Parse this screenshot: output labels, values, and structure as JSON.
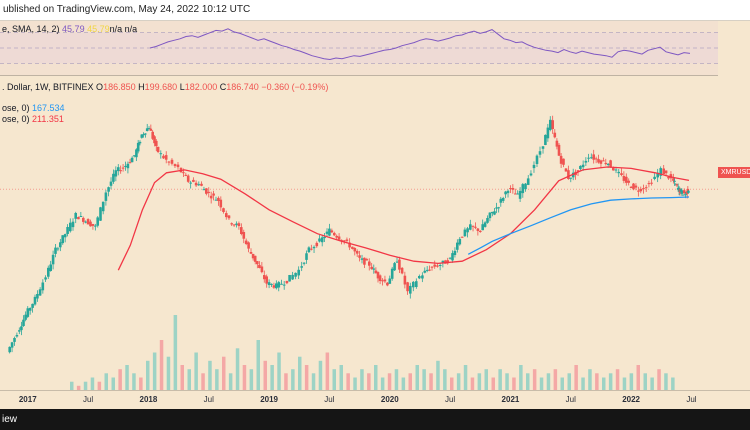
{
  "header": {
    "published": "ublished on TradingView.com, May 24, 2022 10:12 UTC"
  },
  "rsi": {
    "legend_main": "e, SMA, 14, 2)",
    "legend_value": "45.79",
    "legend_sma": "45.79",
    "legend_na": "n/a n/a",
    "line_color": "#7e57c2",
    "sma_color": "#f0d545",
    "points": [
      50,
      52,
      55,
      58,
      60,
      62,
      65,
      66,
      64,
      67,
      70,
      73,
      72,
      75,
      71,
      69,
      66,
      63,
      60,
      62,
      59,
      56,
      53,
      51,
      48,
      46,
      43,
      40,
      38,
      36,
      35,
      37,
      36,
      38,
      40,
      39,
      41,
      43,
      45,
      47,
      48,
      50,
      53,
      55,
      57,
      60,
      62,
      61,
      59,
      61,
      63,
      66,
      67,
      70,
      72,
      69,
      71,
      74,
      68,
      62,
      60,
      57,
      58,
      54,
      51,
      49,
      47,
      46,
      44,
      48,
      45,
      43,
      46,
      44,
      42,
      41,
      40,
      38,
      45,
      47,
      46,
      44,
      42,
      47,
      49,
      51,
      45,
      43,
      41,
      44,
      43
    ]
  },
  "legend_main": {
    "title": ". Dollar, 1W, BITFINEX",
    "ohlc": [
      {
        "k": "O",
        "v": "186.850"
      },
      {
        "k": "H",
        "v": "199.680"
      },
      {
        "k": "L",
        "v": "182.000"
      },
      {
        "k": "C",
        "v": "186.740"
      }
    ],
    "change": "−0.360 (−0.19%)",
    "ma200_label": "ose, 0)",
    "ma200_value": "167.534",
    "ma50_label": "ose, 0)",
    "ma50_value": "211.351"
  },
  "price_tag": "XMRUSD",
  "colors": {
    "up": "#26a69a",
    "down": "#ef5350",
    "ma50": "#f23645",
    "ma200": "#2196f3",
    "vol_up": "#9dd3c5",
    "vol_down": "#f4a8a6"
  },
  "x_axis": [
    {
      "label": "2017",
      "year": true,
      "t": 2017.0
    },
    {
      "label": "Jul",
      "year": false,
      "t": 2017.5
    },
    {
      "label": "2018",
      "year": true,
      "t": 2018.0
    },
    {
      "label": "Jul",
      "year": false,
      "t": 2018.5
    },
    {
      "label": "2019",
      "year": true,
      "t": 2019.0
    },
    {
      "label": "Jul",
      "year": false,
      "t": 2019.5
    },
    {
      "label": "2020",
      "year": true,
      "t": 2020.0
    },
    {
      "label": "Jul",
      "year": false,
      "t": 2020.5
    },
    {
      "label": "2021",
      "year": true,
      "t": 2021.0
    },
    {
      "label": "Jul",
      "year": false,
      "t": 2021.5
    },
    {
      "label": "2022",
      "year": true,
      "t": 2022.0
    },
    {
      "label": "Jul",
      "year": false,
      "t": 2022.5
    }
  ],
  "footer": {
    "text": "iew"
  },
  "chart_data": {
    "type": "candlestick",
    "symbol": "XMRUSD",
    "exchange": "BITFINEX",
    "interval": "1W",
    "scale": "log",
    "x_range": [
      2016.77,
      2022.72
    ],
    "y_range": [
      18,
      600
    ],
    "price_series": [
      [
        2016.85,
        19
      ],
      [
        2016.93,
        25
      ],
      [
        2017.0,
        32
      ],
      [
        2017.08,
        40
      ],
      [
        2017.17,
        55
      ],
      [
        2017.25,
        80
      ],
      [
        2017.33,
        100
      ],
      [
        2017.42,
        130
      ],
      [
        2017.5,
        120
      ],
      [
        2017.58,
        110
      ],
      [
        2017.67,
        180
      ],
      [
        2017.75,
        240
      ],
      [
        2017.83,
        260
      ],
      [
        2017.9,
        300
      ],
      [
        2017.96,
        400
      ],
      [
        2018.02,
        450
      ],
      [
        2018.08,
        330
      ],
      [
        2018.17,
        280
      ],
      [
        2018.27,
        250
      ],
      [
        2018.35,
        210
      ],
      [
        2018.44,
        200
      ],
      [
        2018.52,
        175
      ],
      [
        2018.6,
        160
      ],
      [
        2018.69,
        120
      ],
      [
        2018.77,
        110
      ],
      [
        2018.85,
        80
      ],
      [
        2018.92,
        65
      ],
      [
        2019.0,
        50
      ],
      [
        2019.08,
        48
      ],
      [
        2019.17,
        52
      ],
      [
        2019.27,
        60
      ],
      [
        2019.35,
        80
      ],
      [
        2019.44,
        90
      ],
      [
        2019.52,
        105
      ],
      [
        2019.6,
        95
      ],
      [
        2019.69,
        85
      ],
      [
        2019.77,
        70
      ],
      [
        2019.85,
        65
      ],
      [
        2019.92,
        55
      ],
      [
        2020.0,
        50
      ],
      [
        2020.08,
        70
      ],
      [
        2020.17,
        44
      ],
      [
        2020.27,
        55
      ],
      [
        2020.35,
        62
      ],
      [
        2020.44,
        65
      ],
      [
        2020.52,
        70
      ],
      [
        2020.6,
        95
      ],
      [
        2020.69,
        110
      ],
      [
        2020.77,
        105
      ],
      [
        2020.85,
        130
      ],
      [
        2020.92,
        150
      ],
      [
        2021.0,
        190
      ],
      [
        2021.08,
        170
      ],
      [
        2021.17,
        220
      ],
      [
        2021.27,
        320
      ],
      [
        2021.35,
        480
      ],
      [
        2021.42,
        300
      ],
      [
        2021.5,
        220
      ],
      [
        2021.58,
        240
      ],
      [
        2021.67,
        300
      ],
      [
        2021.75,
        280
      ],
      [
        2021.83,
        270
      ],
      [
        2021.92,
        230
      ],
      [
        2022.0,
        200
      ],
      [
        2022.08,
        185
      ],
      [
        2022.17,
        200
      ],
      [
        2022.27,
        245
      ],
      [
        2022.35,
        215
      ],
      [
        2022.39,
        192
      ],
      [
        2022.42,
        180
      ],
      [
        2022.46,
        175
      ],
      [
        2022.48,
        187
      ]
    ],
    "ma200_series": [
      [
        2020.65,
        75
      ],
      [
        2020.75,
        82
      ],
      [
        2020.85,
        90
      ],
      [
        2021.0,
        100
      ],
      [
        2021.17,
        112
      ],
      [
        2021.33,
        125
      ],
      [
        2021.5,
        140
      ],
      [
        2021.67,
        152
      ],
      [
        2021.83,
        160
      ],
      [
        2022.0,
        163
      ],
      [
        2022.17,
        165
      ],
      [
        2022.33,
        166
      ],
      [
        2022.48,
        167.534
      ]
    ],
    "ma50_series": [
      [
        2017.75,
        60
      ],
      [
        2017.85,
        85
      ],
      [
        2017.95,
        140
      ],
      [
        2018.05,
        205
      ],
      [
        2018.15,
        235
      ],
      [
        2018.3,
        245
      ],
      [
        2018.45,
        232
      ],
      [
        2018.6,
        215
      ],
      [
        2018.8,
        175
      ],
      [
        2019.0,
        140
      ],
      [
        2019.2,
        118
      ],
      [
        2019.4,
        100
      ],
      [
        2019.6,
        90
      ],
      [
        2019.8,
        82
      ],
      [
        2020.0,
        74
      ],
      [
        2020.2,
        68
      ],
      [
        2020.4,
        66
      ],
      [
        2020.6,
        68
      ],
      [
        2020.8,
        80
      ],
      [
        2021.0,
        100
      ],
      [
        2021.2,
        140
      ],
      [
        2021.4,
        210
      ],
      [
        2021.6,
        245
      ],
      [
        2021.8,
        255
      ],
      [
        2022.0,
        250
      ],
      [
        2022.2,
        235
      ],
      [
        2022.35,
        220
      ],
      [
        2022.48,
        211.351
      ]
    ],
    "volume_relative": [
      2,
      1,
      2,
      3,
      2,
      4,
      3,
      5,
      6,
      4,
      3,
      7,
      9,
      12,
      8,
      18,
      6,
      5,
      9,
      4,
      7,
      5,
      8,
      4,
      10,
      6,
      5,
      12,
      7,
      6,
      9,
      4,
      5,
      8,
      6,
      4,
      7,
      9,
      5,
      6,
      4,
      3,
      5,
      4,
      6,
      3,
      4,
      5,
      3,
      4,
      6,
      5,
      4,
      7,
      5,
      3,
      4,
      6,
      3,
      4,
      5,
      3,
      5,
      4,
      3,
      6,
      4,
      5,
      3,
      4,
      5,
      3,
      4,
      6,
      3,
      5,
      4,
      3,
      4,
      5,
      3,
      4,
      6,
      4,
      3,
      5,
      4,
      3
    ]
  }
}
